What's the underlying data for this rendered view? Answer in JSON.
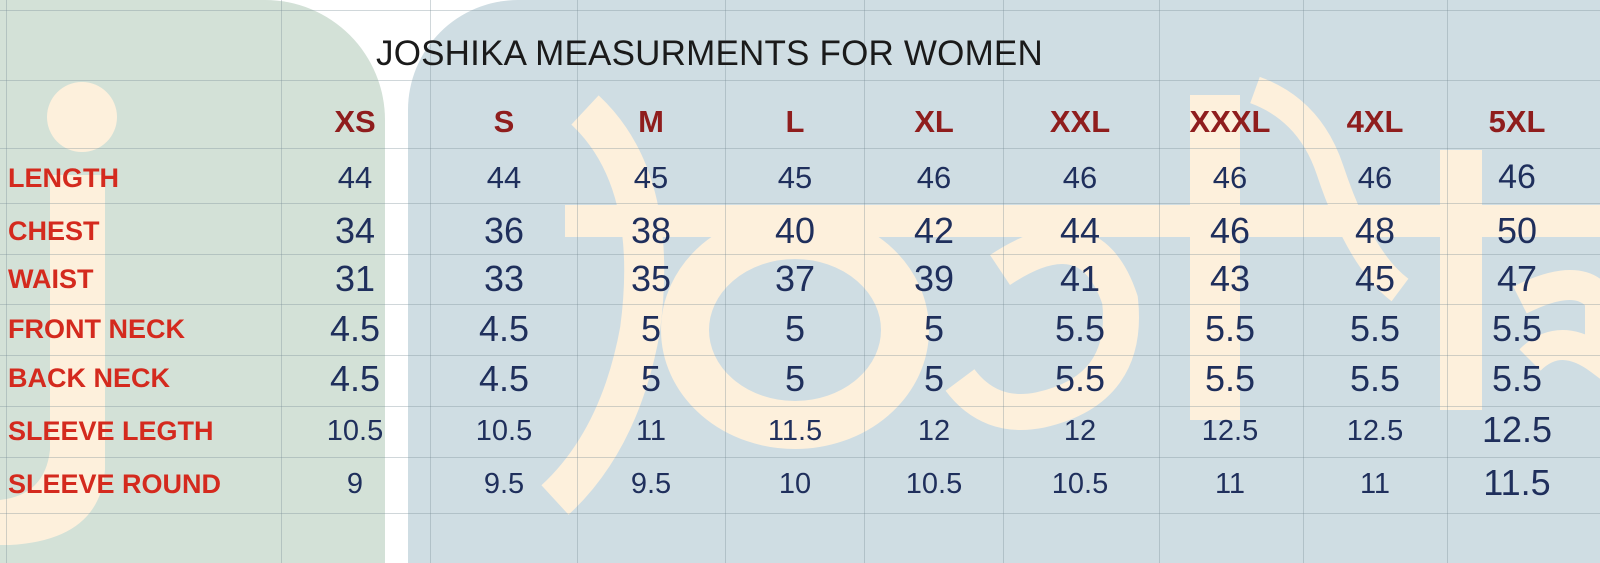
{
  "title": "JOSHIKA MEASURMENTS FOR WOMEN",
  "colors": {
    "row_label": "#d42a1e",
    "size_header": "#8f1d1d",
    "value": "#1f2f5c",
    "watermark_left": "#d3e1d7",
    "watermark_right": "#cfdde3",
    "watermark_letters": "#fdf0dc"
  },
  "table": {
    "sizes": [
      "XS",
      "S",
      "M",
      "L",
      "XL",
      "XXL",
      "XXXL",
      "4XL",
      "5XL"
    ],
    "rows": [
      {
        "label": " LENGTH",
        "values": [
          "44",
          "44",
          "45",
          "45",
          "46",
          "46",
          "46",
          "46",
          "46"
        ]
      },
      {
        "label": "CHEST",
        "values": [
          "34",
          "36",
          "38",
          "40",
          "42",
          "44",
          "46",
          "48",
          "50"
        ]
      },
      {
        "label": "WAIST",
        "values": [
          "31",
          "33",
          "35",
          "37",
          "39",
          "41",
          "43",
          "45",
          "47"
        ]
      },
      {
        "label": "FRONT NECK",
        "values": [
          "4.5",
          "4.5",
          "5",
          "5",
          "5",
          "5.5",
          "5.5",
          "5.5",
          "5.5"
        ]
      },
      {
        "label": "BACK NECK",
        "values": [
          "4.5",
          "4.5",
          "5",
          "5",
          "5",
          "5.5",
          "5.5",
          "5.5",
          "5.5"
        ]
      },
      {
        "label": "SLEEVE LEGTH",
        "values": [
          "10.5",
          "10.5",
          "11",
          "11.5",
          "12",
          "12",
          "12.5",
          "12.5",
          "12.5"
        ]
      },
      {
        "label": "SLEEVE ROUND",
        "values": [
          "9",
          "9.5",
          "9.5",
          "10",
          "10.5",
          "10.5",
          "11",
          "11",
          "11.5"
        ]
      }
    ]
  }
}
